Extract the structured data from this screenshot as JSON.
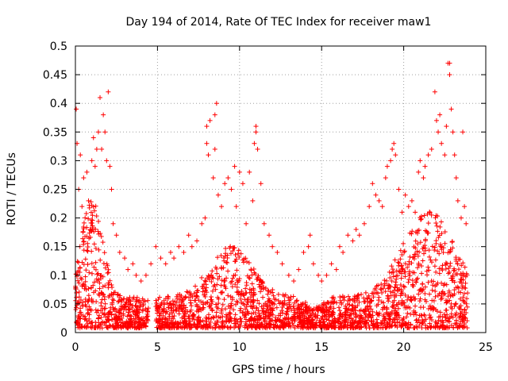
{
  "chart_data": {
    "type": "scatter",
    "title": "Day 194 of 2014, Rate Of TEC Index for receiver maw1",
    "xlabel": "GPS time / hours",
    "ylabel": "ROTI / TECUs",
    "xlim": [
      0,
      25
    ],
    "ylim": [
      0,
      0.5
    ],
    "x_ticks": [
      "0",
      "5",
      "10",
      "15",
      "20",
      "25"
    ],
    "y_ticks": [
      "0",
      "0.05",
      "0.1",
      "0.15",
      "0.2",
      "0.25",
      "0.3",
      "0.35",
      "0.4",
      "0.45",
      "0.5"
    ],
    "grid": true,
    "marker": "+",
    "series": [
      {
        "name": "maw1",
        "color": "#ff0000",
        "points": [
          [
            0.05,
            0.39
          ],
          [
            0.1,
            0.33
          ],
          [
            0.2,
            0.25
          ],
          [
            0.3,
            0.31
          ],
          [
            0.4,
            0.22
          ],
          [
            0.5,
            0.27
          ],
          [
            0.7,
            0.28
          ],
          [
            0.8,
            0.23
          ],
          [
            0.9,
            0.18
          ],
          [
            1.0,
            0.3
          ],
          [
            1.1,
            0.34
          ],
          [
            1.2,
            0.29
          ],
          [
            1.3,
            0.32
          ],
          [
            1.4,
            0.35
          ],
          [
            1.5,
            0.41
          ],
          [
            1.6,
            0.32
          ],
          [
            1.7,
            0.38
          ],
          [
            1.8,
            0.35
          ],
          [
            1.9,
            0.3
          ],
          [
            2.0,
            0.42
          ],
          [
            2.1,
            0.29
          ],
          [
            2.2,
            0.25
          ],
          [
            2.3,
            0.19
          ],
          [
            2.5,
            0.17
          ],
          [
            2.7,
            0.14
          ],
          [
            3.0,
            0.13
          ],
          [
            3.2,
            0.11
          ],
          [
            3.5,
            0.12
          ],
          [
            3.7,
            0.1
          ],
          [
            4.0,
            0.09
          ],
          [
            4.3,
            0.1
          ],
          [
            4.6,
            0.12
          ],
          [
            4.9,
            0.15
          ],
          [
            5.2,
            0.13
          ],
          [
            5.5,
            0.12
          ],
          [
            5.8,
            0.14
          ],
          [
            6.0,
            0.13
          ],
          [
            6.3,
            0.15
          ],
          [
            6.6,
            0.14
          ],
          [
            6.9,
            0.17
          ],
          [
            7.1,
            0.15
          ],
          [
            7.4,
            0.16
          ],
          [
            7.7,
            0.19
          ],
          [
            7.9,
            0.2
          ],
          [
            8.0,
            0.33
          ],
          [
            8.1,
            0.31
          ],
          [
            8.0,
            0.36
          ],
          [
            8.2,
            0.37
          ],
          [
            8.4,
            0.27
          ],
          [
            8.5,
            0.38
          ],
          [
            8.6,
            0.4
          ],
          [
            8.5,
            0.32
          ],
          [
            8.7,
            0.24
          ],
          [
            8.9,
            0.22
          ],
          [
            9.1,
            0.26
          ],
          [
            9.3,
            0.27
          ],
          [
            9.5,
            0.25
          ],
          [
            9.7,
            0.29
          ],
          [
            9.8,
            0.22
          ],
          [
            10.0,
            0.28
          ],
          [
            10.2,
            0.26
          ],
          [
            10.4,
            0.19
          ],
          [
            10.6,
            0.28
          ],
          [
            10.8,
            0.23
          ],
          [
            10.9,
            0.33
          ],
          [
            11.0,
            0.35
          ],
          [
            11.0,
            0.36
          ],
          [
            11.1,
            0.32
          ],
          [
            11.3,
            0.26
          ],
          [
            11.5,
            0.19
          ],
          [
            11.8,
            0.17
          ],
          [
            12.0,
            0.15
          ],
          [
            12.3,
            0.14
          ],
          [
            12.6,
            0.12
          ],
          [
            13.0,
            0.1
          ],
          [
            13.3,
            0.09
          ],
          [
            13.6,
            0.11
          ],
          [
            13.9,
            0.14
          ],
          [
            14.2,
            0.15
          ],
          [
            14.3,
            0.17
          ],
          [
            14.5,
            0.12
          ],
          [
            14.8,
            0.1
          ],
          [
            15.0,
            0.09
          ],
          [
            15.3,
            0.1
          ],
          [
            15.6,
            0.12
          ],
          [
            15.9,
            0.11
          ],
          [
            16.1,
            0.15
          ],
          [
            16.3,
            0.14
          ],
          [
            16.6,
            0.17
          ],
          [
            16.9,
            0.16
          ],
          [
            17.1,
            0.18
          ],
          [
            17.3,
            0.17
          ],
          [
            17.6,
            0.19
          ],
          [
            17.9,
            0.22
          ],
          [
            18.1,
            0.26
          ],
          [
            18.3,
            0.24
          ],
          [
            18.5,
            0.23
          ],
          [
            18.7,
            0.22
          ],
          [
            18.9,
            0.27
          ],
          [
            19.0,
            0.29
          ],
          [
            19.2,
            0.3
          ],
          [
            19.3,
            0.32
          ],
          [
            19.4,
            0.33
          ],
          [
            19.5,
            0.31
          ],
          [
            19.7,
            0.25
          ],
          [
            19.9,
            0.21
          ],
          [
            20.1,
            0.24
          ],
          [
            20.3,
            0.22
          ],
          [
            20.5,
            0.23
          ],
          [
            20.7,
            0.21
          ],
          [
            20.9,
            0.28
          ],
          [
            21.0,
            0.3
          ],
          [
            21.2,
            0.27
          ],
          [
            21.3,
            0.29
          ],
          [
            21.5,
            0.31
          ],
          [
            21.7,
            0.32
          ],
          [
            21.9,
            0.42
          ],
          [
            22.0,
            0.37
          ],
          [
            22.1,
            0.35
          ],
          [
            22.2,
            0.38
          ],
          [
            22.3,
            0.33
          ],
          [
            22.5,
            0.31
          ],
          [
            22.6,
            0.36
          ],
          [
            22.7,
            0.47
          ],
          [
            22.8,
            0.47
          ],
          [
            22.8,
            0.45
          ],
          [
            22.9,
            0.39
          ],
          [
            23.0,
            0.35
          ],
          [
            23.1,
            0.31
          ],
          [
            23.2,
            0.27
          ],
          [
            23.3,
            0.23
          ],
          [
            23.5,
            0.2
          ],
          [
            23.6,
            0.35
          ],
          [
            23.7,
            0.22
          ],
          [
            23.8,
            0.19
          ]
        ]
      }
    ]
  }
}
